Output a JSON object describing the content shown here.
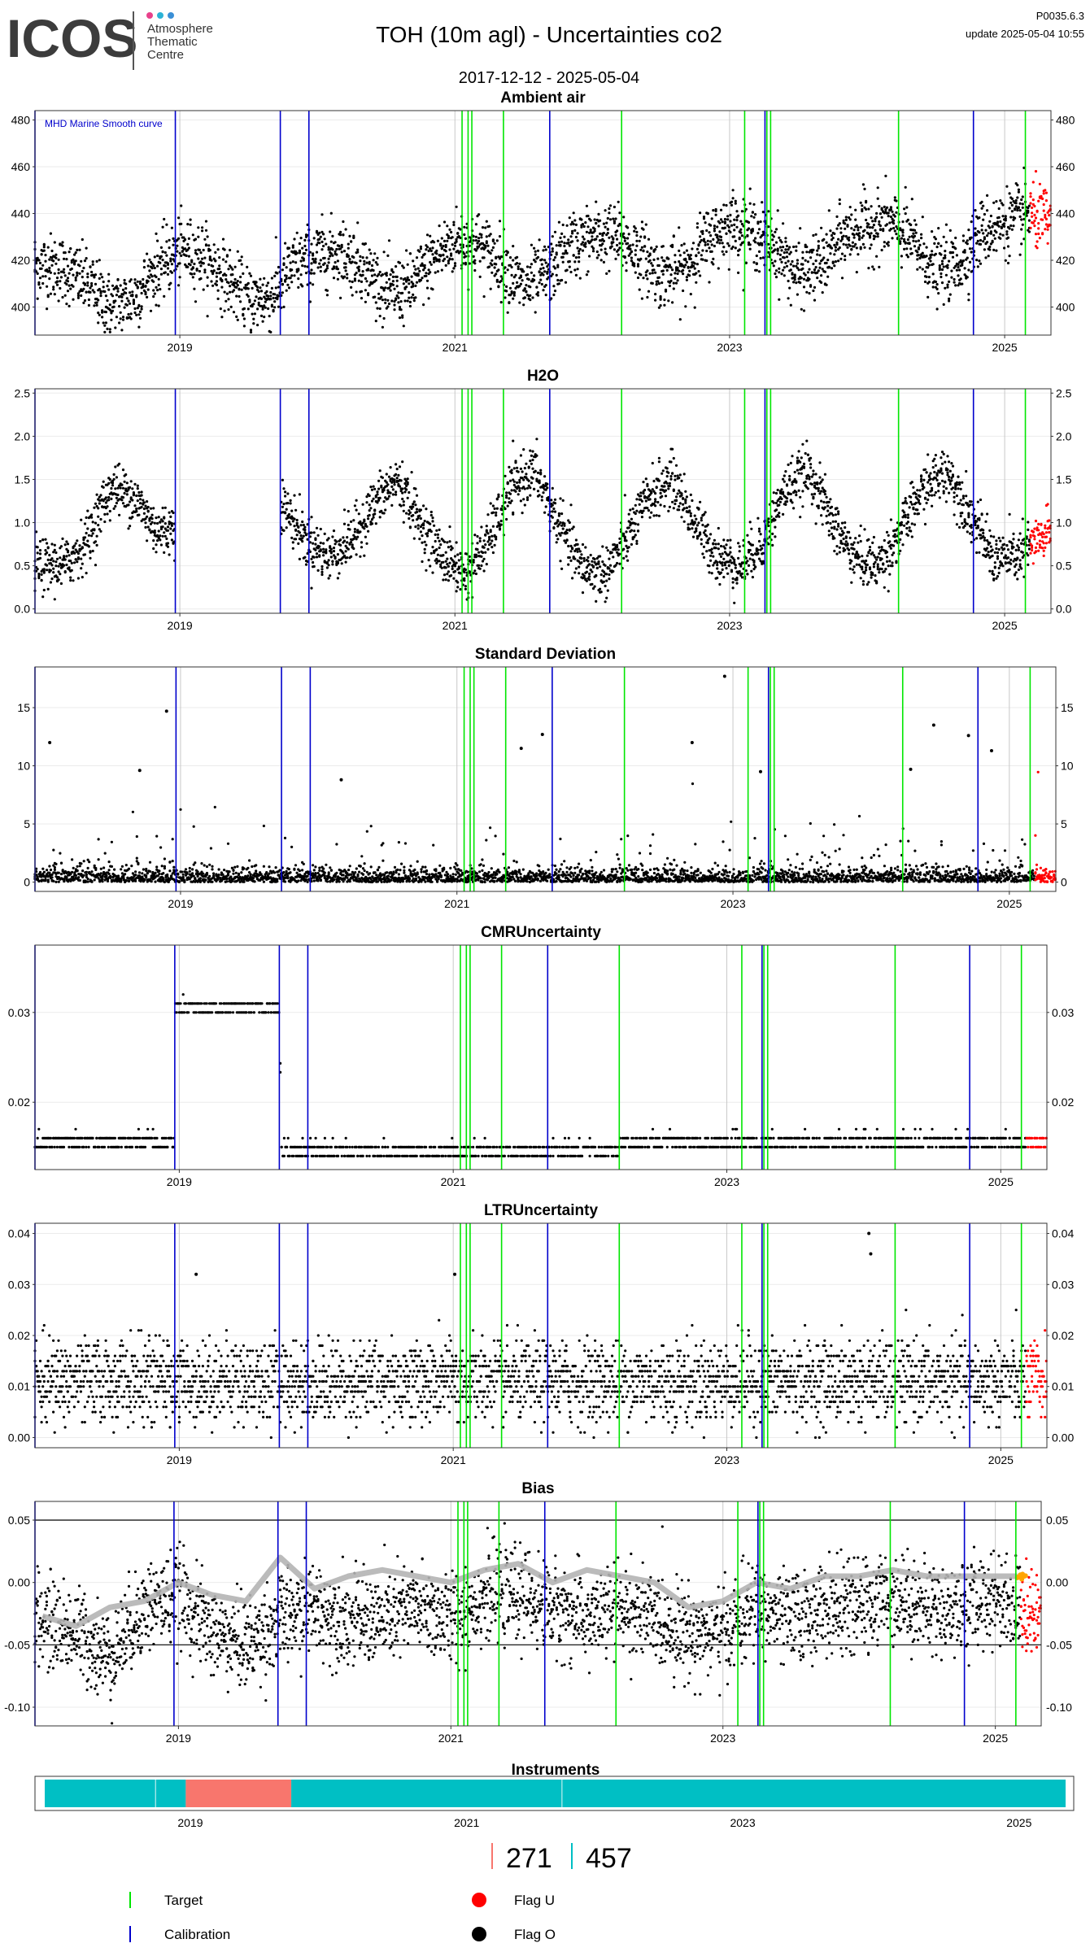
{
  "header": {
    "logo_text": "ICOS",
    "logo_sub": [
      "Atmosphere",
      "Thematic",
      "Centre"
    ],
    "logo_dot_colors": [
      "#e8418b",
      "#2bb3d6",
      "#3a8fd6"
    ],
    "title": "TOH  (10m agl) - Uncertainties co2",
    "date_range": "2017-12-12 - 2025-05-04",
    "version": "P0035.6.3",
    "update": "update  2025-05-04 10:55"
  },
  "colors": {
    "target_line": "#00e600",
    "calibration_line": "#0000cc",
    "data": "#000000",
    "flag_u": "#ff0000",
    "flag_orange": "#ffa500",
    "smooth": "#b4b4b4",
    "instrument_a": "#00bfc4",
    "instrument_b": "#f8766d",
    "grid": "#ebebeb",
    "year_grid": "#c8c8c8"
  },
  "x_axis": {
    "start": "2017-12-12",
    "end": "2025-05-04",
    "tick_labels": [
      "2019",
      "2021",
      "2023",
      "2025"
    ]
  },
  "event_lines": {
    "calibration": [
      "2017-12-12",
      "2018-12-20",
      "2019-09-25",
      "2019-12-10",
      "2021-09-10",
      "2023-04-05",
      "2024-10-10"
    ],
    "target": [
      "2021-01-20",
      "2021-02-05",
      "2021-02-15",
      "2021-05-10",
      "2022-03-20",
      "2023-02-10",
      "2023-04-10",
      "2023-04-20",
      "2024-03-25",
      "2025-02-25"
    ]
  },
  "annotation": "MHD Marine Smooth curve",
  "chart_data": [
    {
      "type": "scatter",
      "title": "Ambient air",
      "ylim": [
        388,
        484
      ],
      "yticks": [
        400,
        420,
        440,
        460,
        480
      ],
      "series": [
        {
          "values": [
            [
              "2018-01-01",
              418
            ],
            [
              "2018-03-01",
              416
            ],
            [
              "2018-05-01",
              410
            ],
            [
              "2018-07-01",
              400
            ],
            [
              "2018-09-01",
              404
            ],
            [
              "2018-11-01",
              416
            ],
            [
              "2019-01-01",
              424
            ],
            [
              "2019-03-01",
              422
            ],
            [
              "2019-05-01",
              413
            ],
            [
              "2019-07-01",
              403
            ],
            [
              "2019-09-01",
              404
            ],
            [
              "2019-11-01",
              418
            ],
            [
              "2020-01-01",
              422
            ],
            [
              "2020-03-01",
              424
            ],
            [
              "2020-05-01",
              418
            ],
            [
              "2020-07-01",
              406
            ],
            [
              "2020-09-01",
              408
            ],
            [
              "2020-11-01",
              420
            ],
            [
              "2021-01-01",
              428
            ],
            [
              "2021-03-01",
              427
            ],
            [
              "2021-05-01",
              420
            ],
            [
              "2021-07-01",
              408
            ],
            [
              "2021-09-01",
              414
            ],
            [
              "2021-11-01",
              426
            ],
            [
              "2022-01-01",
              430
            ],
            [
              "2022-03-01",
              430
            ],
            [
              "2022-05-01",
              424
            ],
            [
              "2022-07-01",
              414
            ],
            [
              "2022-09-01",
              416
            ],
            [
              "2022-11-01",
              428
            ],
            [
              "2023-01-01",
              436
            ],
            [
              "2023-03-01",
              432
            ],
            [
              "2023-05-01",
              426
            ],
            [
              "2023-07-01",
              414
            ],
            [
              "2023-09-01",
              418
            ],
            [
              "2023-11-01",
              430
            ],
            [
              "2024-01-01",
              434
            ],
            [
              "2024-03-01",
              436
            ],
            [
              "2024-05-01",
              428
            ],
            [
              "2024-07-01",
              416
            ],
            [
              "2024-09-01",
              418
            ],
            [
              "2024-11-01",
              432
            ],
            [
              "2025-01-01",
              436
            ],
            [
              "2025-03-01",
              440
            ],
            [
              "2025-05-04",
              436
            ]
          ]
        }
      ]
    },
    {
      "type": "scatter",
      "title": "H2O",
      "ylim": [
        -0.05,
        2.55
      ],
      "yticks": [
        0.0,
        0.5,
        1.0,
        1.5,
        2.0,
        2.5
      ],
      "gap": [
        "2018-12-20",
        "2019-09-25"
      ],
      "series": [
        {
          "values": [
            [
              "2018-01-01",
              0.5
            ],
            [
              "2018-03-01",
              0.5
            ],
            [
              "2018-05-01",
              0.8
            ],
            [
              "2018-07-01",
              1.4
            ],
            [
              "2018-09-01",
              1.3
            ],
            [
              "2018-11-01",
              0.9
            ],
            [
              "2019-10-01",
              1.2
            ],
            [
              "2019-12-01",
              0.8
            ],
            [
              "2020-02-01",
              0.6
            ],
            [
              "2020-04-01",
              0.8
            ],
            [
              "2020-06-01",
              1.2
            ],
            [
              "2020-08-01",
              1.5
            ],
            [
              "2020-10-01",
              1.0
            ],
            [
              "2020-12-01",
              0.6
            ],
            [
              "2021-02-01",
              0.4
            ],
            [
              "2021-04-01",
              0.8
            ],
            [
              "2021-06-01",
              1.4
            ],
            [
              "2021-08-01",
              1.6
            ],
            [
              "2021-10-01",
              1.0
            ],
            [
              "2021-12-01",
              0.5
            ],
            [
              "2022-02-01",
              0.4
            ],
            [
              "2022-04-01",
              0.8
            ],
            [
              "2022-06-01",
              1.3
            ],
            [
              "2022-08-01",
              1.5
            ],
            [
              "2022-10-01",
              1.0
            ],
            [
              "2022-12-01",
              0.6
            ],
            [
              "2023-02-01",
              0.5
            ],
            [
              "2023-04-01",
              0.8
            ],
            [
              "2023-06-01",
              1.4
            ],
            [
              "2023-08-01",
              1.6
            ],
            [
              "2023-10-01",
              1.0
            ],
            [
              "2023-12-01",
              0.6
            ],
            [
              "2024-02-01",
              0.5
            ],
            [
              "2024-04-01",
              0.9
            ],
            [
              "2024-06-01",
              1.4
            ],
            [
              "2024-08-01",
              1.6
            ],
            [
              "2024-10-01",
              1.1
            ],
            [
              "2024-12-01",
              0.6
            ],
            [
              "2025-02-01",
              0.6
            ],
            [
              "2025-05-04",
              0.9
            ]
          ]
        }
      ]
    },
    {
      "type": "scatter",
      "title": "Standard Deviation",
      "ylim": [
        -0.8,
        18.5
      ],
      "yticks": [
        0,
        5,
        10,
        15
      ],
      "outliers": [
        [
          "2018-01-20",
          12
        ],
        [
          "2018-11-25",
          14.7
        ],
        [
          "2018-09-15",
          9.6
        ],
        [
          "2020-03-01",
          8.8
        ],
        [
          "2021-08-15",
          12.7
        ],
        [
          "2021-06-20",
          11.5
        ],
        [
          "2022-09-15",
          12.0
        ],
        [
          "2022-12-10",
          17.7
        ],
        [
          "2023-03-15",
          9.5
        ],
        [
          "2024-04-15",
          9.7
        ],
        [
          "2024-06-15",
          13.5
        ],
        [
          "2024-09-15",
          12.6
        ],
        [
          "2024-11-15",
          11.3
        ]
      ],
      "series": [
        {
          "values": [
            [
              "2017-12-12",
              0.5
            ],
            [
              "2025-05-04",
              0.5
            ]
          ]
        }
      ]
    },
    {
      "type": "scatter",
      "title": "CMRUncertainty",
      "ylim": [
        0.0125,
        0.0375
      ],
      "yticks": [
        0.02,
        0.03
      ],
      "series": [
        {
          "values": [
            [
              "2017-12-12",
              0.016
            ],
            [
              "2018-12-20",
              0.016
            ],
            [
              "2018-12-21",
              0.031
            ],
            [
              "2019-09-25",
              0.031
            ],
            [
              "2019-10-01",
              0.015
            ],
            [
              "2022-03-20",
              0.015
            ],
            [
              "2022-03-21",
              0.016
            ],
            [
              "2025-05-04",
              0.016
            ]
          ]
        }
      ]
    },
    {
      "type": "scatter",
      "title": "LTRUncertainty",
      "ylim": [
        -0.002,
        0.042
      ],
      "yticks": [
        0.0,
        0.01,
        0.02,
        0.03,
        0.04
      ],
      "outliers": [
        [
          "2019-02-15",
          0.032
        ],
        [
          "2021-01-05",
          0.032
        ],
        [
          "2024-01-15",
          0.04
        ],
        [
          "2024-01-20",
          0.036
        ]
      ],
      "series": [
        {
          "values": [
            [
              "2017-12-12",
              0.011
            ],
            [
              "2025-05-04",
              0.011
            ]
          ]
        }
      ]
    },
    {
      "type": "scatter",
      "title": "Bias",
      "ylim": [
        -0.115,
        0.065
      ],
      "yticks": [
        -0.1,
        -0.05,
        0.0,
        0.05
      ],
      "hlines": [
        0.05,
        -0.05
      ],
      "series": [
        {
          "values": [
            [
              "2018-01-01",
              -0.03
            ],
            [
              "2018-04-01",
              -0.04
            ],
            [
              "2018-07-01",
              -0.06
            ],
            [
              "2018-10-01",
              -0.02
            ],
            [
              "2019-01-01",
              -0.01
            ],
            [
              "2019-04-01",
              -0.04
            ],
            [
              "2019-07-01",
              -0.05
            ],
            [
              "2019-10-01",
              -0.03
            ],
            [
              "2020-01-01",
              -0.02
            ],
            [
              "2020-04-01",
              -0.03
            ],
            [
              "2020-07-01",
              -0.03
            ],
            [
              "2020-10-01",
              -0.02
            ],
            [
              "2021-01-01",
              -0.03
            ],
            [
              "2021-04-01",
              -0.01
            ],
            [
              "2021-07-01",
              -0.01
            ],
            [
              "2021-10-01",
              -0.02
            ],
            [
              "2022-01-01",
              -0.03
            ],
            [
              "2022-04-01",
              -0.02
            ],
            [
              "2022-07-01",
              -0.03
            ],
            [
              "2022-10-01",
              -0.04
            ],
            [
              "2023-01-01",
              -0.04
            ],
            [
              "2023-04-01",
              -0.02
            ],
            [
              "2023-07-01",
              -0.03
            ],
            [
              "2023-10-01",
              -0.02
            ],
            [
              "2024-01-01",
              -0.02
            ],
            [
              "2024-04-01",
              -0.01
            ],
            [
              "2024-07-01",
              -0.02
            ],
            [
              "2024-10-01",
              -0.02
            ],
            [
              "2025-01-01",
              -0.01
            ],
            [
              "2025-05-04",
              -0.03
            ]
          ]
        },
        {
          "name": "MHD Marine Smooth curve",
          "values": [
            [
              "2018-01-01",
              -0.027
            ],
            [
              "2018-04-01",
              -0.035
            ],
            [
              "2018-07-01",
              -0.02
            ],
            [
              "2018-10-01",
              -0.015
            ],
            [
              "2019-01-01",
              0.0
            ],
            [
              "2019-04-01",
              -0.01
            ],
            [
              "2019-07-01",
              -0.015
            ],
            [
              "2019-10-01",
              0.02
            ],
            [
              "2020-01-01",
              -0.005
            ],
            [
              "2020-04-01",
              0.005
            ],
            [
              "2020-07-01",
              0.01
            ],
            [
              "2020-10-01",
              0.005
            ],
            [
              "2021-01-01",
              0.0
            ],
            [
              "2021-04-01",
              0.01
            ],
            [
              "2021-07-01",
              0.015
            ],
            [
              "2021-10-01",
              0.0
            ],
            [
              "2022-01-01",
              0.01
            ],
            [
              "2022-04-01",
              0.005
            ],
            [
              "2022-07-01",
              0.0
            ],
            [
              "2022-10-01",
              -0.02
            ],
            [
              "2023-01-01",
              -0.015
            ],
            [
              "2023-04-01",
              0.0
            ],
            [
              "2023-07-01",
              -0.005
            ],
            [
              "2023-10-01",
              0.005
            ],
            [
              "2024-01-01",
              0.005
            ],
            [
              "2024-04-01",
              0.01
            ],
            [
              "2024-07-01",
              0.005
            ],
            [
              "2024-10-01",
              0.005
            ],
            [
              "2025-01-01",
              0.005
            ],
            [
              "2025-03-01",
              0.005
            ]
          ]
        }
      ]
    }
  ],
  "instruments": {
    "title": "Instruments",
    "segments": [
      {
        "start": "2017-12-12",
        "end": "2018-12-20",
        "color": "#00bfc4"
      },
      {
        "start": "2018-12-20",
        "end": "2019-09-25",
        "color": "#f8766d"
      },
      {
        "start": "2019-09-25",
        "end": "2025-05-04",
        "color": "#00bfc4"
      }
    ],
    "counts": [
      {
        "value": "271",
        "color": "#f8766d"
      },
      {
        "value": "457",
        "color": "#00bfc4"
      }
    ]
  },
  "legend": {
    "target": "Target",
    "calibration": "Calibration",
    "flag_u": "Flag U",
    "flag_o": "Flag O"
  }
}
